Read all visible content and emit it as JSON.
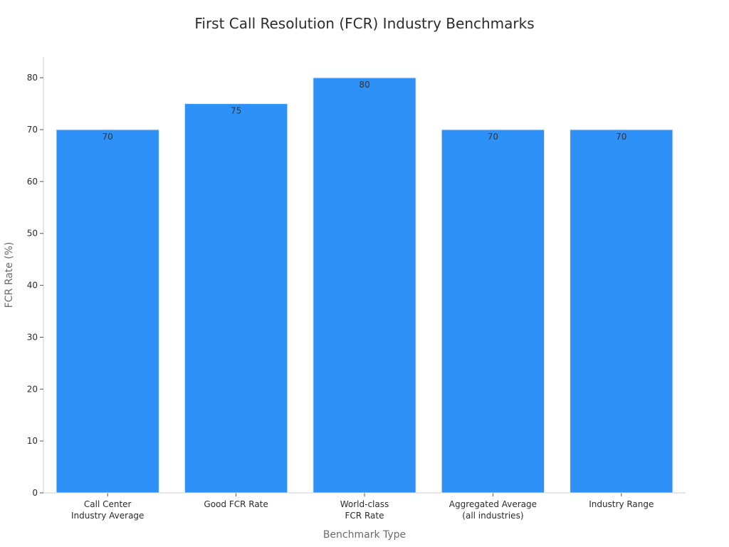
{
  "chart_data": {
    "type": "bar",
    "title": "First Call Resolution (FCR) Industry Benchmarks",
    "xlabel": "Benchmark Type",
    "ylabel": "FCR Rate (%)",
    "categories": [
      [
        "Call Center",
        "Industry Average"
      ],
      [
        "Good FCR Rate"
      ],
      [
        "World-class",
        "FCR Rate"
      ],
      [
        "Aggregated Average",
        "(all industries)"
      ],
      [
        "Industry Range"
      ]
    ],
    "values": [
      70,
      75,
      80,
      70,
      70
    ],
    "ylim": [
      0,
      84
    ],
    "yticks": [
      0,
      10,
      20,
      30,
      40,
      50,
      60,
      70,
      80
    ],
    "bar_color": "#2e91f8",
    "bar_edge_color": "#e6e6e6",
    "grid": false,
    "legend": "none"
  }
}
